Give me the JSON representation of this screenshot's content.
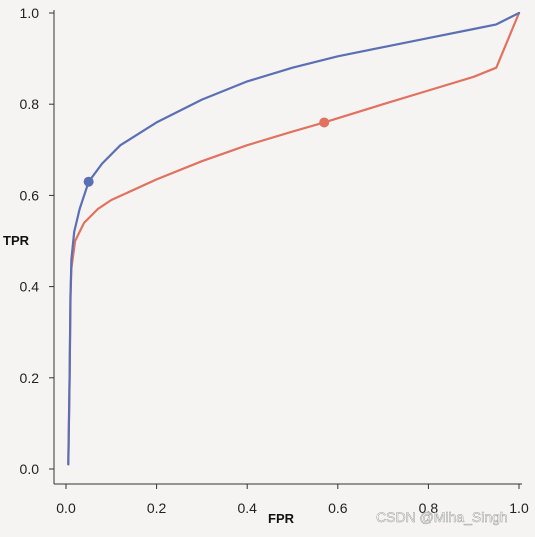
{
  "chart_data": {
    "type": "line",
    "xlabel": "FPR",
    "ylabel": "TPR",
    "xlim": [
      0,
      1
    ],
    "ylim": [
      0,
      1
    ],
    "x_ticks": [
      "0.0",
      "0.2",
      "0.4",
      "0.6",
      "0.8",
      "1.0"
    ],
    "y_ticks": [
      "0.0",
      "0.2",
      "0.4",
      "0.6",
      "0.8",
      "1.0"
    ],
    "grid": false,
    "series": [
      {
        "color": "#5b6fb4",
        "points": [
          [
            0.005,
            0.01
          ],
          [
            0.008,
            0.2
          ],
          [
            0.01,
            0.38
          ],
          [
            0.012,
            0.46
          ],
          [
            0.018,
            0.52
          ],
          [
            0.03,
            0.57
          ],
          [
            0.05,
            0.63
          ],
          [
            0.08,
            0.67
          ],
          [
            0.12,
            0.71
          ],
          [
            0.2,
            0.76
          ],
          [
            0.3,
            0.81
          ],
          [
            0.4,
            0.85
          ],
          [
            0.5,
            0.88
          ],
          [
            0.6,
            0.905
          ],
          [
            0.7,
            0.925
          ],
          [
            0.8,
            0.945
          ],
          [
            0.9,
            0.965
          ],
          [
            0.95,
            0.975
          ],
          [
            1.0,
            1.0
          ]
        ],
        "marker": [
          0.05,
          0.63
        ]
      },
      {
        "color": "#e2725f",
        "points": [
          [
            0.005,
            0.01
          ],
          [
            0.008,
            0.2
          ],
          [
            0.01,
            0.38
          ],
          [
            0.012,
            0.44
          ],
          [
            0.02,
            0.5
          ],
          [
            0.04,
            0.54
          ],
          [
            0.07,
            0.57
          ],
          [
            0.1,
            0.59
          ],
          [
            0.2,
            0.635
          ],
          [
            0.3,
            0.675
          ],
          [
            0.4,
            0.71
          ],
          [
            0.5,
            0.74
          ],
          [
            0.57,
            0.76
          ],
          [
            0.7,
            0.8
          ],
          [
            0.8,
            0.83
          ],
          [
            0.9,
            0.86
          ],
          [
            0.95,
            0.88
          ],
          [
            1.0,
            1.0
          ]
        ],
        "marker": [
          0.57,
          0.76
        ]
      }
    ]
  },
  "watermark": "CSDN @Miha_Singh"
}
